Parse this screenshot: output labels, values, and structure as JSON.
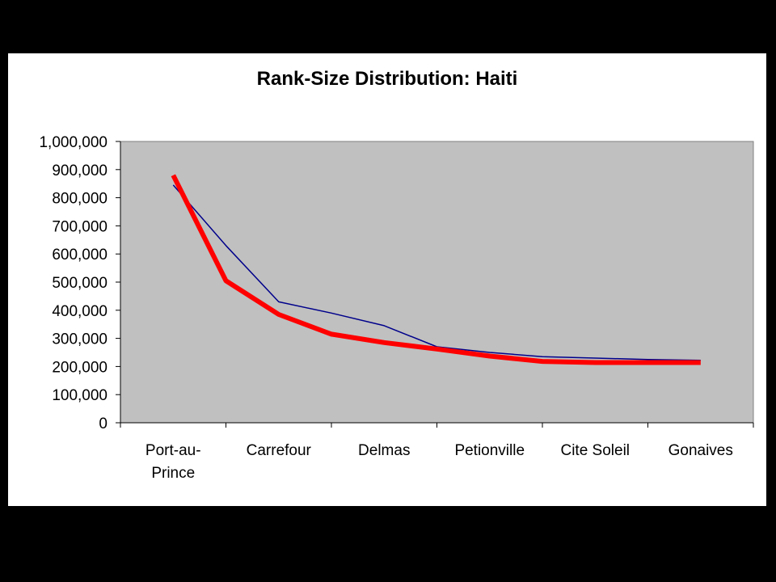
{
  "chart_data": {
    "type": "line",
    "title": "Rank-Size Distribution: Haiti",
    "xlabel": "",
    "ylabel": "",
    "categories": [
      "Port-au-Prince",
      "Carrefour",
      "Delmas",
      "Petionville",
      "Cite Soleil",
      "Gonaives"
    ],
    "category_display": [
      [
        "Port-au-",
        "Prince"
      ],
      [
        "Carrefour"
      ],
      [
        "Delmas"
      ],
      [
        "Petionville"
      ],
      [
        "Cite Soleil"
      ],
      [
        "Gonaives"
      ]
    ],
    "ylim": [
      0,
      1000000
    ],
    "yticks": [
      0,
      100000,
      200000,
      300000,
      400000,
      500000,
      600000,
      700000,
      800000,
      900000,
      1000000
    ],
    "ytick_labels": [
      "0",
      "100,000",
      "200,000",
      "300,000",
      "400,000",
      "500,000",
      "600,000",
      "700,000",
      "800,000",
      "900,000",
      "1,000,000"
    ],
    "grid": false,
    "legend": "none",
    "series": [
      {
        "color": "#00008b",
        "x": [
          0,
          1,
          2,
          3,
          4,
          5,
          6,
          7,
          8,
          9,
          10
        ],
        "values": [
          845000,
          630000,
          430000,
          390000,
          345000,
          270000,
          250000,
          235000,
          230000,
          225000,
          222000
        ]
      },
      {
        "color": "#ff0000",
        "x": [
          0,
          1,
          2,
          3,
          4,
          5,
          6,
          7,
          8,
          9,
          10
        ],
        "values": [
          880000,
          505000,
          385000,
          315000,
          285000,
          262000,
          237000,
          218000,
          214000,
          214000,
          214000
        ]
      }
    ],
    "plot_background": "#c0c0c0"
  }
}
